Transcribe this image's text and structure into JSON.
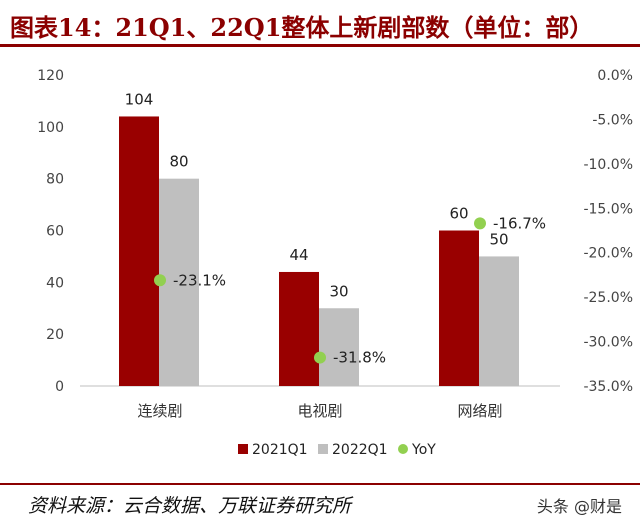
{
  "header": {
    "title": "图表14：21Q1、22Q1整体上新剧部数（单位：部）"
  },
  "footer": {
    "source": "资料来源：云合数据、万联证券研究所",
    "watermark": "头条 @财是"
  },
  "colors": {
    "series_2021": "#990000",
    "series_2022": "#bfbfbf",
    "yoy": "#92d050",
    "accent": "#8b0000"
  },
  "chart_data": {
    "type": "bar",
    "categories": [
      "连续剧",
      "电视剧",
      "网络剧"
    ],
    "series": [
      {
        "name": "2021Q1",
        "values": [
          104,
          44,
          60
        ]
      },
      {
        "name": "2022Q1",
        "values": [
          80,
          30,
          50
        ]
      }
    ],
    "yoy": {
      "name": "YoY",
      "values": [
        -23.1,
        -31.8,
        -16.7
      ],
      "labels": [
        "-23.1%",
        "-31.8%",
        "-16.7%"
      ]
    },
    "ylim": [
      0,
      120
    ],
    "yticks": [
      "0",
      "20",
      "40",
      "60",
      "80",
      "100",
      "120"
    ],
    "y2lim": [
      -35,
      0
    ],
    "y2ticks": [
      "0.0%",
      "-5.0%",
      "-10.0%",
      "-15.0%",
      "-20.0%",
      "-25.0%",
      "-30.0%",
      "-35.0%"
    ],
    "legend_position": "bottom"
  }
}
